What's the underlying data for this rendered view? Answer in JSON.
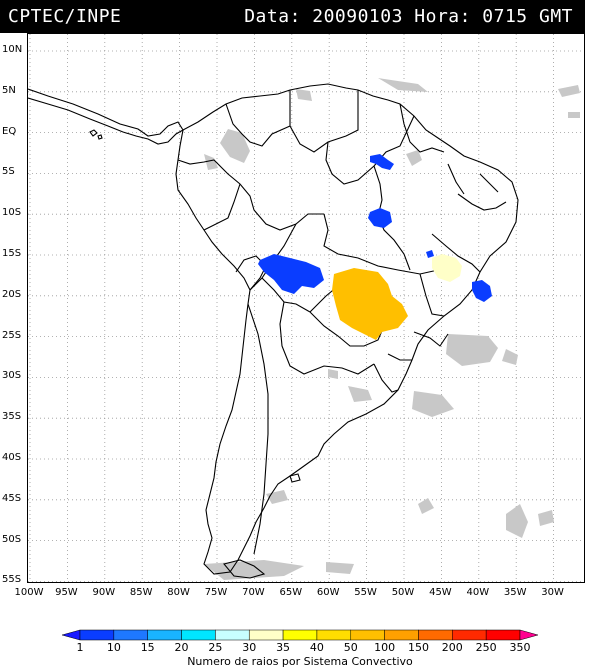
{
  "header": {
    "source": "CPTEC/INPE",
    "info": "Data: 20090103 Hora: 0715 GMT"
  },
  "map": {
    "lat_labels": [
      "10N",
      "5N",
      "EQ",
      "5S",
      "10S",
      "15S",
      "20S",
      "25S",
      "30S",
      "35S",
      "40S",
      "45S",
      "50S",
      "55S"
    ],
    "lon_labels": [
      "100W",
      "95W",
      "90W",
      "85W",
      "80W",
      "75W",
      "70W",
      "65W",
      "60W",
      "55W",
      "50W",
      "45W",
      "40W",
      "35W",
      "30W"
    ],
    "grid": true,
    "region": "South America",
    "colors": {
      "land_outline": "#000000",
      "clouds": "#c0c0c0",
      "blue_systems": "#0a3dff",
      "orange_systems": "#ffbf00",
      "pale_system": "#ffffc8"
    }
  },
  "legend": {
    "title": "Numero de raios por Sistema Convectivo",
    "labels": [
      "1",
      "10",
      "15",
      "20",
      "25",
      "30",
      "35",
      "40",
      "50",
      "100",
      "150",
      "200",
      "250",
      "350"
    ],
    "colors": [
      "#1a1aff",
      "#0a3dff",
      "#1e78ff",
      "#19b4ff",
      "#00e6ff",
      "#c8ffff",
      "#ffffc8",
      "#ffff00",
      "#ffdd00",
      "#ffbf00",
      "#ffa000",
      "#ff6a00",
      "#ff2a00",
      "#ff0000",
      "#ff0090"
    ]
  }
}
